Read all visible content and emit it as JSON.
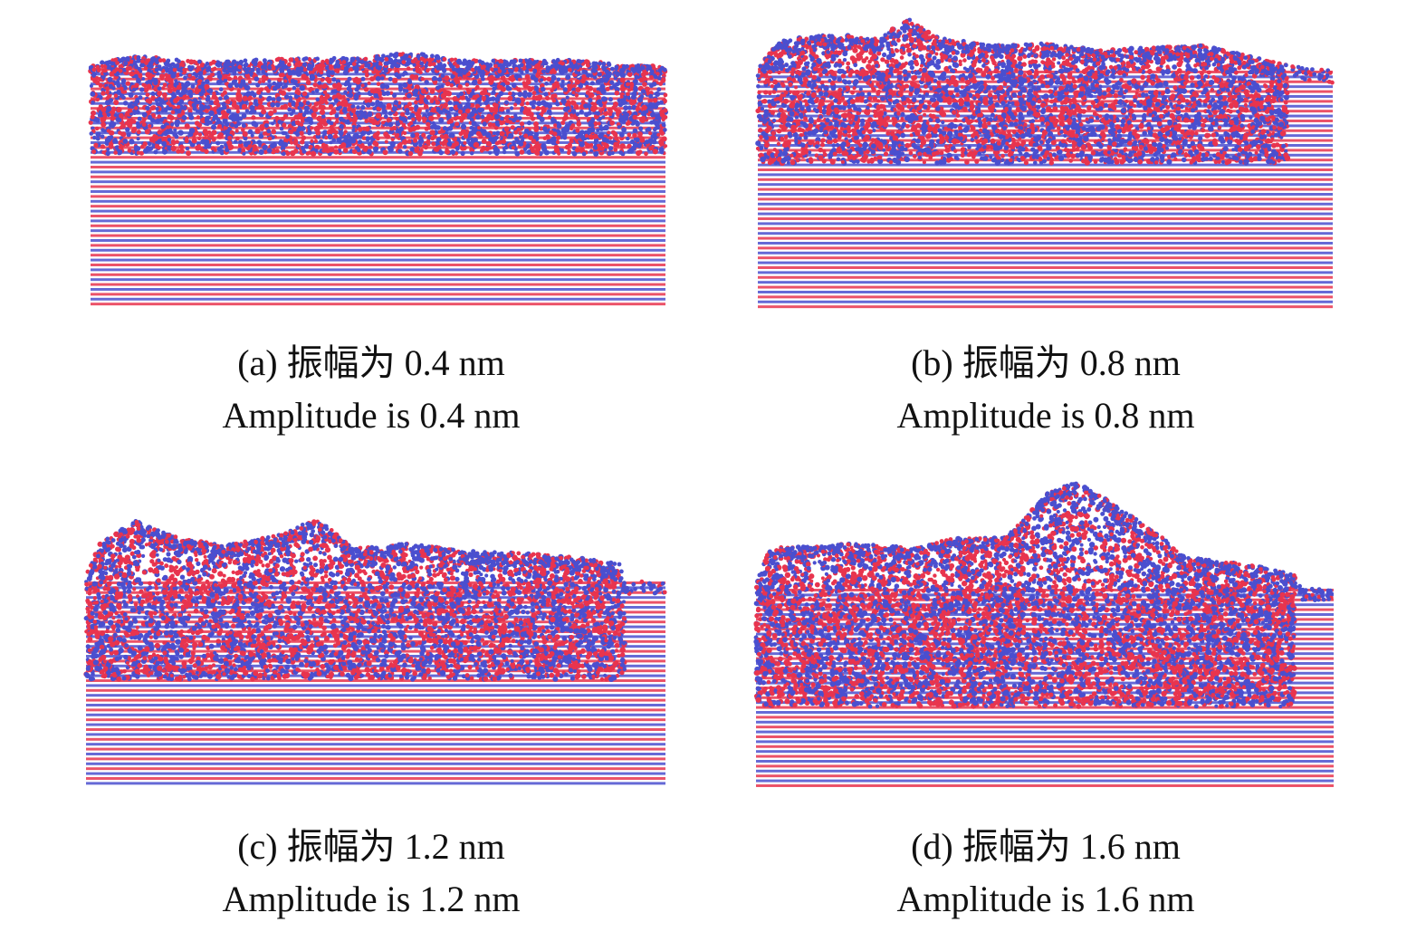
{
  "figure": {
    "colors": {
      "atom_red": "#e8344e",
      "atom_blue": "#4a4fcf",
      "background": "#ffffff"
    },
    "panels": [
      {
        "id": "a",
        "caption_cn": "(a) 振幅为 0.4 nm",
        "caption_en": "Amplitude is 0.4 nm",
        "amplitude_nm": 0.4
      },
      {
        "id": "b",
        "caption_cn": "(b) 振幅为 0.8 nm",
        "caption_en": "Amplitude is 0.8 nm",
        "amplitude_nm": 0.8
      },
      {
        "id": "c",
        "caption_cn": "(c) 振幅为 1.2 nm",
        "caption_en": "Amplitude is 1.2 nm",
        "amplitude_nm": 1.2
      },
      {
        "id": "d",
        "caption_cn": "(d) 振幅为 1.6 nm",
        "caption_en": "Amplitude is 1.6 nm",
        "amplitude_nm": 1.6
      }
    ]
  }
}
